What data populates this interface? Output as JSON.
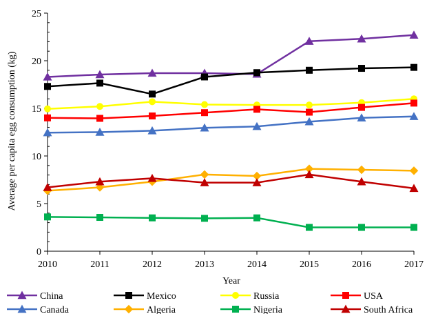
{
  "chart_data": {
    "type": "line",
    "title": "",
    "xlabel": "Year",
    "ylabel": "Average per capita egg consumption (kg)",
    "x": [
      2010,
      2011,
      2012,
      2013,
      2014,
      2015,
      2016,
      2017
    ],
    "xlim": [
      2010,
      2017
    ],
    "ylim": [
      0,
      25
    ],
    "yticks": [
      0,
      5,
      10,
      15,
      20,
      25
    ],
    "grid": false,
    "legend_position": "bottom",
    "series": [
      {
        "name": "China",
        "color": "#7030A0",
        "marker": "triangle",
        "values": [
          18.3,
          18.55,
          18.7,
          18.7,
          18.6,
          22.05,
          22.3,
          22.7
        ]
      },
      {
        "name": "Mexico",
        "color": "#000000",
        "marker": "square",
        "values": [
          17.3,
          17.65,
          16.5,
          18.3,
          18.75,
          19.0,
          19.2,
          19.3
        ]
      },
      {
        "name": "Russia",
        "color": "#FFFF00",
        "marker": "circle",
        "values": [
          14.95,
          15.2,
          15.7,
          15.4,
          15.35,
          15.35,
          15.6,
          16.0
        ]
      },
      {
        "name": "USA",
        "color": "#FF0000",
        "marker": "square",
        "values": [
          14.0,
          13.95,
          14.2,
          14.55,
          14.9,
          14.6,
          15.1,
          15.55
        ]
      },
      {
        "name": "Canada",
        "color": "#4472C4",
        "marker": "triangle",
        "values": [
          12.45,
          12.5,
          12.65,
          12.95,
          13.1,
          13.6,
          14.0,
          14.15
        ]
      },
      {
        "name": "Algeria",
        "color": "#FFB000",
        "marker": "diamond",
        "values": [
          6.35,
          6.7,
          7.3,
          8.05,
          7.9,
          8.65,
          8.55,
          8.45
        ]
      },
      {
        "name": "Nigeria",
        "color": "#00B050",
        "marker": "square",
        "values": [
          3.6,
          3.55,
          3.5,
          3.45,
          3.5,
          2.5,
          2.5,
          2.5
        ]
      },
      {
        "name": "South Africa",
        "color": "#C00000",
        "marker": "triangle",
        "values": [
          6.7,
          7.3,
          7.65,
          7.2,
          7.2,
          8.05,
          7.3,
          6.6
        ]
      }
    ]
  }
}
